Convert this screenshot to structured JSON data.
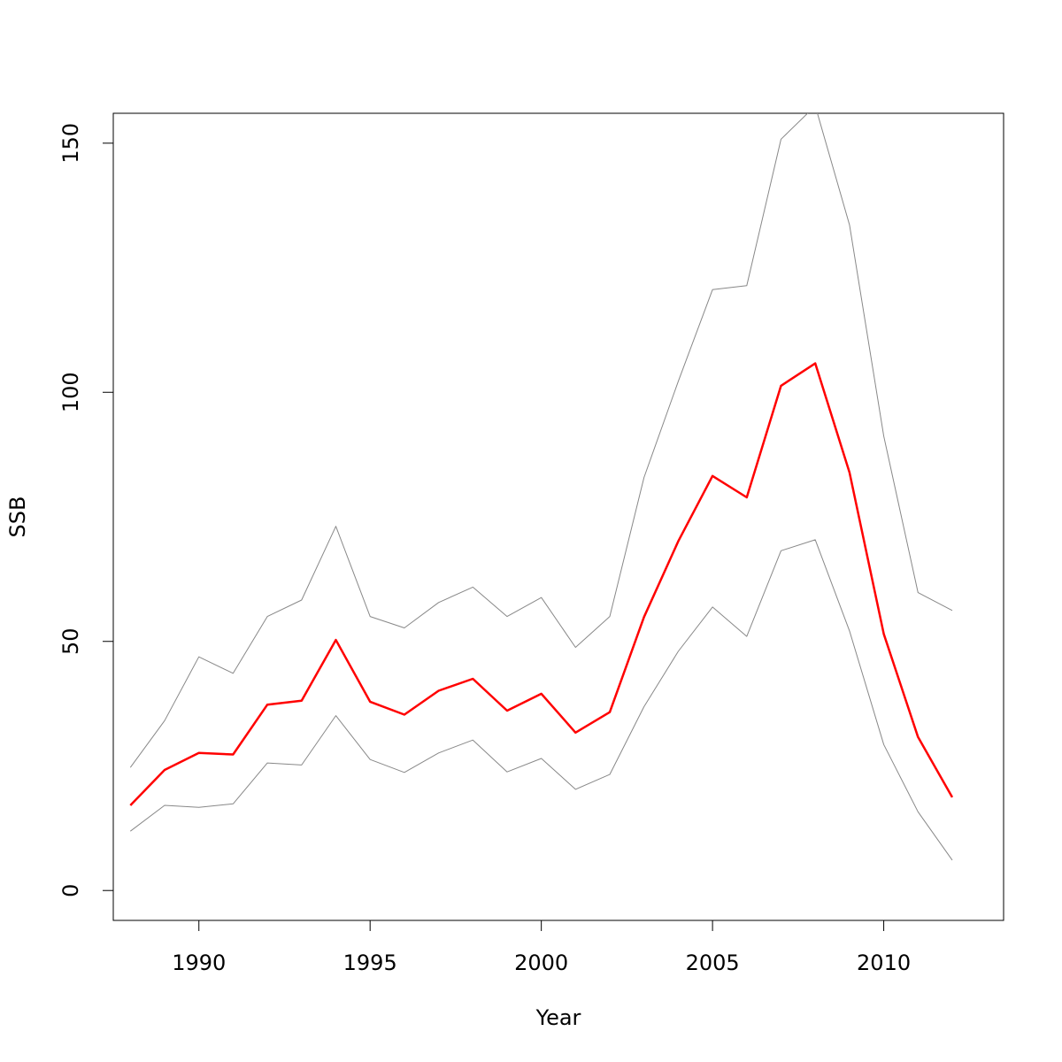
{
  "chart_data": {
    "type": "line",
    "title": "",
    "xlabel": "Year",
    "ylabel": "SSB",
    "xlim": [
      1987.5,
      2013.5
    ],
    "ylim": [
      -6,
      156
    ],
    "x_ticks": [
      1990,
      1995,
      2000,
      2005,
      2010
    ],
    "y_ticks": [
      0,
      50,
      100,
      150
    ],
    "grid": false,
    "legend": "none",
    "x": [
      1988,
      1989,
      1990,
      1991,
      1992,
      1993,
      1994,
      1995,
      1996,
      1997,
      1998,
      1999,
      2000,
      2001,
      2002,
      2003,
      2004,
      2005,
      2006,
      2007,
      2008,
      2009,
      2010,
      2011,
      2012
    ],
    "series": [
      {
        "role": "estimate",
        "color": "#ff0000",
        "values": [
          17.1,
          24.2,
          27.6,
          27.3,
          37.3,
          38.1,
          50.3,
          37.9,
          35.3,
          40.1,
          42.5,
          36.1,
          39.5,
          31.7,
          35.8,
          54.9,
          70.1,
          83.2,
          78.9,
          101.3,
          105.8,
          83.9,
          51.5,
          30.8,
          18.7
        ]
      },
      {
        "role": "upper",
        "color": "#888888",
        "values": [
          24.7,
          34.1,
          46.9,
          43.6,
          55.0,
          58.3,
          73.1,
          55.0,
          52.7,
          57.8,
          60.9,
          55.0,
          58.8,
          48.8,
          55.0,
          82.9,
          102.2,
          120.6,
          121.4,
          150.8,
          157.5,
          133.6,
          91.2,
          59.8,
          56.2
        ]
      },
      {
        "role": "lower",
        "color": "#888888",
        "values": [
          11.9,
          17.1,
          16.7,
          17.4,
          25.6,
          25.2,
          35.1,
          26.3,
          23.7,
          27.6,
          30.2,
          23.8,
          26.5,
          20.3,
          23.3,
          36.9,
          48.0,
          56.9,
          51.0,
          68.2,
          70.4,
          52.1,
          29.3,
          15.8,
          6.1
        ]
      }
    ]
  }
}
